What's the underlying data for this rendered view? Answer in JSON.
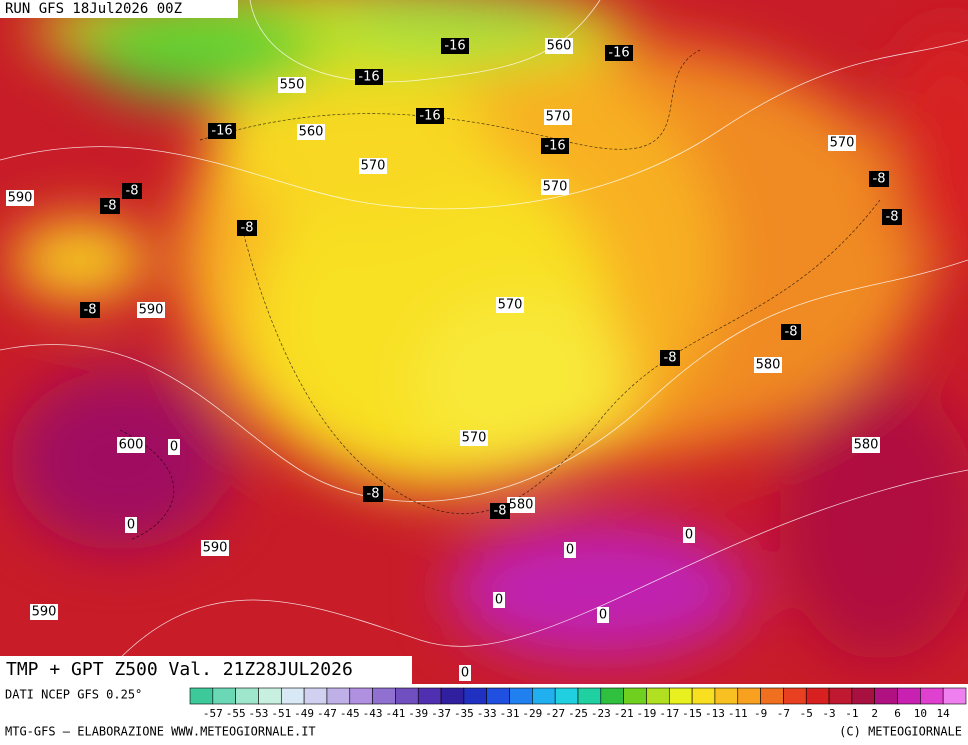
{
  "header": {
    "run": "RUN GFS 18Jul2026 00Z"
  },
  "title": "TMP + GPT Z500 Val. 21Z28JUL2026",
  "geopotential_labels": [
    "560",
    "550",
    "560",
    "570",
    "570",
    "570",
    "570",
    "590",
    "590",
    "570",
    "580",
    "570",
    "600",
    "580",
    "580",
    "590",
    "590"
  ],
  "temperature_labels": [
    "-16",
    "-16",
    "-16",
    "-16",
    "-16",
    "-16",
    "-8",
    "-8",
    "-8",
    "-8",
    "-8",
    "-8",
    "-8",
    "-8",
    "-8",
    "-8",
    "0",
    "0",
    "0",
    "0",
    "0",
    "0",
    "0"
  ],
  "legend": {
    "source": "DATI NCEP GFS 0.25°",
    "colors": [
      "#3ec99b",
      "#6ad8b4",
      "#9ee6cc",
      "#c8f0e0",
      "#d8e8f4",
      "#d0d0f0",
      "#c0b0e8",
      "#b090e0",
      "#9070d0",
      "#7050c0",
      "#5030b0",
      "#3020a0",
      "#2030c0",
      "#2050e0",
      "#2080f0",
      "#20b0f0",
      "#20d0e0",
      "#20d0a0",
      "#30c040",
      "#70d020",
      "#b0e020",
      "#e8f020",
      "#f8e020",
      "#f8c020",
      "#f8a020",
      "#f07020",
      "#e84020",
      "#d82020",
      "#c01830",
      "#a81040",
      "#b01080",
      "#c820b0",
      "#e040d0",
      "#f080f0"
    ],
    "labels": [
      "-57",
      "-55",
      "-53",
      "-51",
      "-49",
      "-47",
      "-45",
      "-43",
      "-41",
      "-39",
      "-37",
      "-35",
      "-33",
      "-31",
      "-29",
      "-27",
      "-25",
      "-23",
      "-21",
      "-19",
      "-17",
      "-15",
      "-13",
      "-11",
      "-9",
      "-7",
      "-5",
      "-3",
      "-1",
      "2",
      "6",
      "10",
      "14"
    ]
  },
  "footer": {
    "left": "MTG-GFS — ELABORAZIONE WWW.METEOGIORNALE.IT",
    "right": "(C) METEOGIORNALE"
  }
}
